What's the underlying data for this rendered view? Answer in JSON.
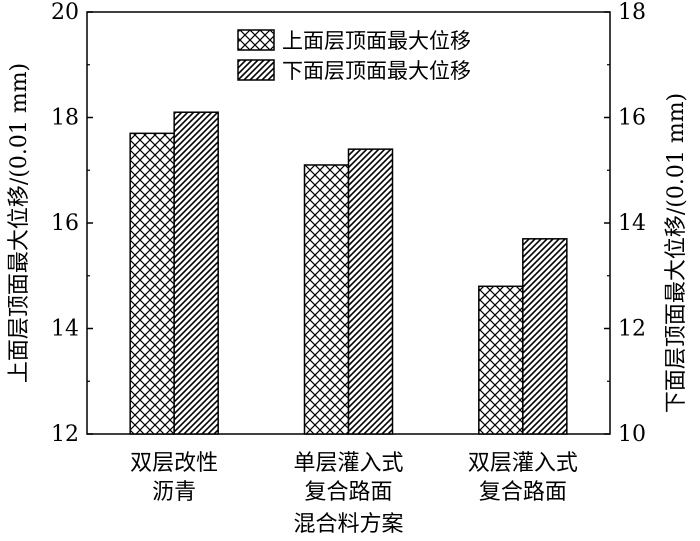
{
  "chart_data": {
    "type": "bar",
    "categories": [
      [
        "双层改性",
        "沥青"
      ],
      [
        "单层灌入式",
        "复合路面"
      ],
      [
        "双层灌入式",
        "复合路面"
      ]
    ],
    "series": [
      {
        "name": "上面层顶面最大位移",
        "axis": "left",
        "pattern": "crosshatch",
        "values": [
          17.7,
          17.1,
          14.8
        ]
      },
      {
        "name": "下面层顶面最大位移",
        "axis": "right",
        "pattern": "diagonal",
        "values": [
          16.1,
          15.4,
          13.7
        ]
      }
    ],
    "xlabel": "混合料方案",
    "ylabel_left": "上面层顶面最大位移/(0.01 mm)",
    "ylabel_right": "下面层顶面最大位移/(0.01 mm)",
    "ylim_left": [
      12,
      20
    ],
    "yticks_left": [
      12,
      14,
      16,
      18,
      20
    ],
    "ylim_right": [
      10,
      18
    ],
    "yticks_right": [
      10,
      12,
      14,
      16,
      18
    ],
    "legend_position": "top-center",
    "grid": false
  }
}
